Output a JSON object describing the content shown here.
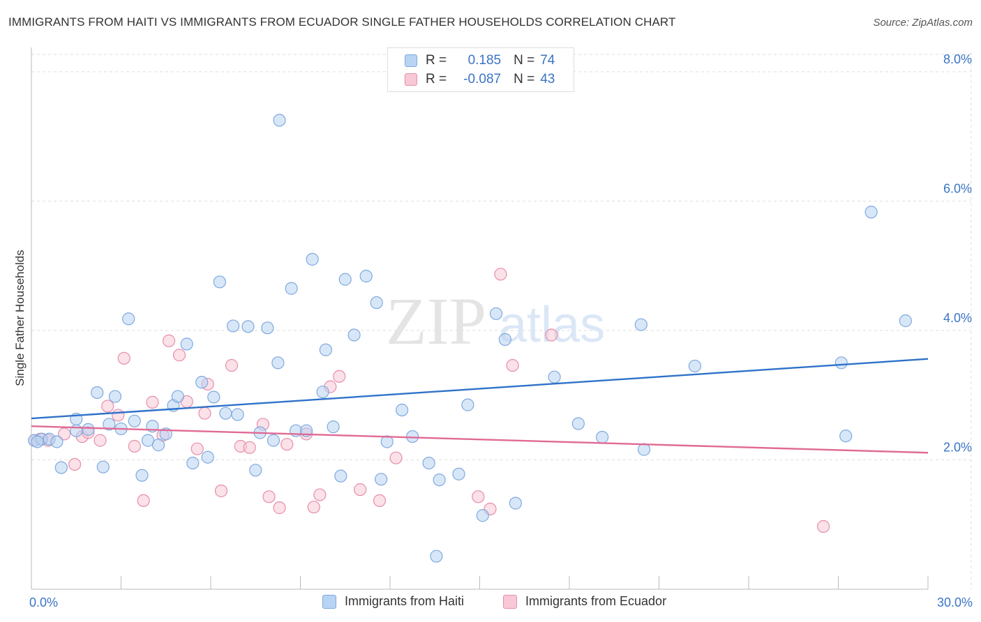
{
  "title": "IMMIGRANTS FROM HAITI VS IMMIGRANTS FROM ECUADOR SINGLE FATHER HOUSEHOLDS CORRELATION CHART",
  "source": "Source: ZipAtlas.com",
  "watermark": {
    "zip": "ZIP",
    "atlas": "atlas"
  },
  "legend": {
    "r_label": "R =",
    "n_label": "N =",
    "haiti": {
      "r": "0.185",
      "n": "74"
    },
    "ecuador": {
      "r": "-0.087",
      "n": "43"
    }
  },
  "colors": {
    "haiti_fill": "#b8d4f3",
    "haiti_stroke": "#7ea9df",
    "haiti_line": "#2f72c9",
    "ecuador_fill": "#f8c8d6",
    "ecuador_stroke": "#e68eaa",
    "ecuador_line": "#e06a94",
    "grid": "#dddddd",
    "tick_text": "#3a74c4"
  },
  "chart_data": {
    "type": "scatter",
    "title": "IMMIGRANTS FROM HAITI VS IMMIGRANTS FROM ECUADOR SINGLE FATHER HOUSEHOLDS CORRELATION CHART",
    "xlabel": "",
    "ylabel": "Single Father Households",
    "xlim": [
      0,
      30
    ],
    "ylim": [
      0,
      8.3
    ],
    "x_tick_labels": [
      "0.0%",
      "30.0%"
    ],
    "y_ticks": [
      2,
      4,
      6,
      8
    ],
    "y_tick_labels": [
      "2.0%",
      "4.0%",
      "6.0%",
      "8.0%"
    ],
    "series": [
      {
        "name": "Immigrants from Haiti",
        "trend": {
          "x": [
            0,
            30
          ],
          "y": [
            2.64,
            3.56
          ]
        },
        "points": [
          [
            0.1,
            2.3
          ],
          [
            0.35,
            2.32
          ],
          [
            0.6,
            2.32
          ],
          [
            0.85,
            2.28
          ],
          [
            1.0,
            1.88
          ],
          [
            1.5,
            2.45
          ],
          [
            1.5,
            2.63
          ],
          [
            1.9,
            2.47
          ],
          [
            2.2,
            3.04
          ],
          [
            2.4,
            1.89
          ],
          [
            2.6,
            2.55
          ],
          [
            2.8,
            2.98
          ],
          [
            3.0,
            2.48
          ],
          [
            3.25,
            4.18
          ],
          [
            3.45,
            2.6
          ],
          [
            3.7,
            1.76
          ],
          [
            3.9,
            2.3
          ],
          [
            4.05,
            2.52
          ],
          [
            4.25,
            2.23
          ],
          [
            4.5,
            2.4
          ],
          [
            4.75,
            2.84
          ],
          [
            4.9,
            2.98
          ],
          [
            5.2,
            3.79
          ],
          [
            5.4,
            1.95
          ],
          [
            5.7,
            3.2
          ],
          [
            5.9,
            2.04
          ],
          [
            6.1,
            2.97
          ],
          [
            6.3,
            4.75
          ],
          [
            6.5,
            2.72
          ],
          [
            6.75,
            4.07
          ],
          [
            6.9,
            2.7
          ],
          [
            7.25,
            4.06
          ],
          [
            7.5,
            1.84
          ],
          [
            7.65,
            2.42
          ],
          [
            7.9,
            4.04
          ],
          [
            8.1,
            2.3
          ],
          [
            8.25,
            3.5
          ],
          [
            8.3,
            7.25
          ],
          [
            8.7,
            4.65
          ],
          [
            8.85,
            2.45
          ],
          [
            9.2,
            2.45
          ],
          [
            9.4,
            5.1
          ],
          [
            9.75,
            3.05
          ],
          [
            9.85,
            3.7
          ],
          [
            10.1,
            2.51
          ],
          [
            10.35,
            1.75
          ],
          [
            10.5,
            4.79
          ],
          [
            10.8,
            3.93
          ],
          [
            11.2,
            4.84
          ],
          [
            11.55,
            4.43
          ],
          [
            11.7,
            1.7
          ],
          [
            11.9,
            2.28
          ],
          [
            12.4,
            2.77
          ],
          [
            12.75,
            2.36
          ],
          [
            13.3,
            1.95
          ],
          [
            13.55,
            0.51
          ],
          [
            13.65,
            1.69
          ],
          [
            14.3,
            1.78
          ],
          [
            14.6,
            2.85
          ],
          [
            15.1,
            1.14
          ],
          [
            15.55,
            4.26
          ],
          [
            15.85,
            3.86
          ],
          [
            16.2,
            1.33
          ],
          [
            17.5,
            3.28
          ],
          [
            18.3,
            2.56
          ],
          [
            19.1,
            2.35
          ],
          [
            20.4,
            4.09
          ],
          [
            20.5,
            2.16
          ],
          [
            22.2,
            3.45
          ],
          [
            27.1,
            3.5
          ],
          [
            27.25,
            2.37
          ],
          [
            28.1,
            5.83
          ],
          [
            29.25,
            4.15
          ],
          [
            0.2,
            2.28
          ]
        ]
      },
      {
        "name": "Immigrants from Ecuador",
        "trend": {
          "x": [
            0,
            30
          ],
          "y": [
            2.52,
            2.11
          ]
        },
        "points": [
          [
            0.1,
            2.3
          ],
          [
            0.55,
            2.3
          ],
          [
            1.1,
            2.4
          ],
          [
            1.45,
            1.93
          ],
          [
            1.7,
            2.36
          ],
          [
            1.9,
            2.42
          ],
          [
            2.3,
            2.3
          ],
          [
            2.55,
            2.83
          ],
          [
            2.9,
            2.69
          ],
          [
            3.1,
            3.57
          ],
          [
            3.45,
            2.21
          ],
          [
            3.75,
            1.37
          ],
          [
            4.05,
            2.89
          ],
          [
            4.4,
            2.38
          ],
          [
            4.6,
            3.84
          ],
          [
            4.95,
            3.62
          ],
          [
            5.2,
            2.9
          ],
          [
            5.55,
            2.17
          ],
          [
            5.8,
            2.72
          ],
          [
            5.9,
            3.17
          ],
          [
            6.35,
            1.52
          ],
          [
            6.7,
            3.46
          ],
          [
            7.0,
            2.21
          ],
          [
            7.3,
            2.19
          ],
          [
            7.75,
            2.55
          ],
          [
            7.95,
            1.43
          ],
          [
            8.3,
            1.26
          ],
          [
            8.55,
            2.24
          ],
          [
            9.2,
            2.4
          ],
          [
            9.45,
            1.27
          ],
          [
            9.65,
            1.46
          ],
          [
            10.0,
            3.13
          ],
          [
            10.3,
            3.29
          ],
          [
            11.0,
            1.54
          ],
          [
            11.65,
            1.37
          ],
          [
            12.2,
            2.03
          ],
          [
            14.95,
            1.43
          ],
          [
            15.35,
            1.24
          ],
          [
            15.7,
            4.87
          ],
          [
            16.1,
            3.46
          ],
          [
            17.4,
            3.93
          ],
          [
            26.5,
            0.97
          ],
          [
            0.3,
            2.32
          ]
        ]
      }
    ]
  },
  "bottom_legend": {
    "haiti_label": "Immigrants from Haiti",
    "ecuador_label": "Immigrants from Ecuador"
  }
}
